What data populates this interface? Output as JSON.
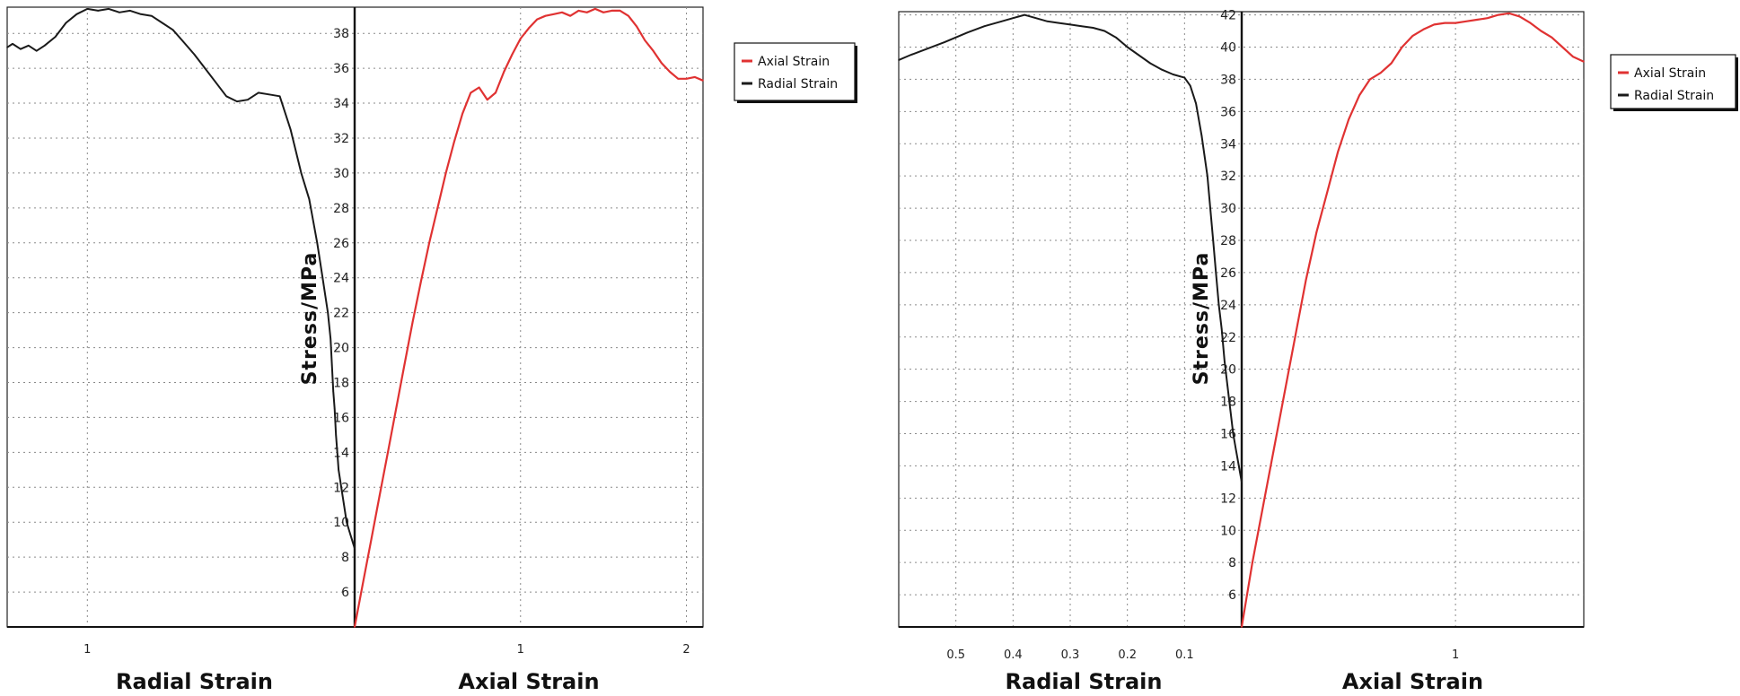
{
  "colors": {
    "axial": "#e03232",
    "radial": "#1a1a1a",
    "grid": "#8a8a8a"
  },
  "chart_data": [
    {
      "type": "line",
      "ylabel": "Stress/MPa",
      "ylim": [
        4,
        39.5
      ],
      "yticks": [
        6,
        8,
        10,
        12,
        14,
        16,
        18,
        20,
        22,
        24,
        26,
        28,
        30,
        32,
        34,
        36,
        38
      ],
      "grid": true,
      "legend_position": "right",
      "radial": {
        "xlabel": "Radial Strain",
        "xlim": [
          1.3,
          0
        ],
        "reversed": true,
        "xticks": [
          1
        ],
        "series": {
          "name": "Radial Strain",
          "x": [
            1.3,
            1.28,
            1.25,
            1.22,
            1.19,
            1.16,
            1.12,
            1.08,
            1.04,
            1.0,
            0.96,
            0.92,
            0.88,
            0.84,
            0.8,
            0.76,
            0.72,
            0.68,
            0.64,
            0.6,
            0.56,
            0.52,
            0.48,
            0.44,
            0.4,
            0.36,
            0.32,
            0.28,
            0.24,
            0.2,
            0.17,
            0.14,
            0.12,
            0.1,
            0.09,
            0.085,
            0.08,
            0.075,
            0.07,
            0.065,
            0.06,
            0.055,
            0.05,
            0.045,
            0.04,
            0.035,
            0.03,
            0.02,
            0.01,
            0.0
          ],
          "y": [
            37.2,
            37.4,
            37.1,
            37.3,
            37.0,
            37.3,
            37.8,
            38.6,
            39.1,
            39.4,
            39.3,
            39.4,
            39.2,
            39.3,
            39.1,
            39.0,
            38.6,
            38.2,
            37.5,
            36.8,
            36.0,
            35.2,
            34.4,
            34.1,
            34.2,
            34.6,
            34.5,
            34.4,
            32.5,
            30.0,
            28.5,
            26.0,
            24.0,
            22.0,
            20.5,
            19.0,
            17.5,
            16.5,
            15.0,
            14.0,
            13.0,
            12.5,
            12.0,
            11.5,
            11.0,
            10.5,
            10.0,
            9.5,
            9.0,
            8.5
          ]
        }
      },
      "axial": {
        "xlabel": "Axial Strain",
        "xlim": [
          0,
          2.1
        ],
        "xticks": [
          1,
          2
        ],
        "series": {
          "name": "Axial Strain",
          "x": [
            0.0,
            0.05,
            0.1,
            0.15,
            0.2,
            0.25,
            0.3,
            0.35,
            0.4,
            0.45,
            0.5,
            0.55,
            0.6,
            0.65,
            0.7,
            0.75,
            0.8,
            0.85,
            0.9,
            0.95,
            1.0,
            1.05,
            1.1,
            1.15,
            1.2,
            1.25,
            1.3,
            1.35,
            1.4,
            1.45,
            1.5,
            1.55,
            1.6,
            1.65,
            1.7,
            1.75,
            1.8,
            1.85,
            1.9,
            1.95,
            2.0,
            2.05,
            2.1
          ],
          "y": [
            4.0,
            6.5,
            9.0,
            11.5,
            14.0,
            16.5,
            19.0,
            21.5,
            23.8,
            26.0,
            28.0,
            30.0,
            31.8,
            33.4,
            34.6,
            34.9,
            34.2,
            34.6,
            35.8,
            36.8,
            37.7,
            38.3,
            38.8,
            39.0,
            39.1,
            39.2,
            39.0,
            39.3,
            39.2,
            39.4,
            39.2,
            39.3,
            39.3,
            39.0,
            38.4,
            37.6,
            37.0,
            36.3,
            35.8,
            35.4,
            35.4,
            35.5,
            35.3
          ]
        }
      }
    },
    {
      "type": "line",
      "ylabel": "Stress/MPa",
      "ylim": [
        4,
        42.2
      ],
      "yticks": [
        6,
        8,
        10,
        12,
        14,
        16,
        18,
        20,
        22,
        24,
        26,
        28,
        30,
        32,
        34,
        36,
        38,
        40,
        42
      ],
      "grid": true,
      "legend_position": "right",
      "radial": {
        "xlabel": "Radial Strain",
        "xlim": [
          0.6,
          0
        ],
        "reversed": true,
        "xticks": [
          0.5,
          0.4,
          0.3,
          0.2,
          0.1
        ],
        "xtick_labels": [
          "0.5",
          "0.4",
          "0.3",
          "0.2",
          "0.1"
        ],
        "series": {
          "name": "Radial Strain",
          "x": [
            0.6,
            0.58,
            0.55,
            0.52,
            0.5,
            0.48,
            0.45,
            0.42,
            0.4,
            0.38,
            0.36,
            0.34,
            0.32,
            0.3,
            0.28,
            0.26,
            0.24,
            0.22,
            0.2,
            0.18,
            0.16,
            0.14,
            0.12,
            0.1,
            0.09,
            0.08,
            0.07,
            0.06,
            0.055,
            0.05,
            0.045,
            0.04,
            0.035,
            0.03,
            0.025,
            0.02,
            0.015,
            0.01,
            0.005,
            0.0
          ],
          "y": [
            39.2,
            39.5,
            39.9,
            40.3,
            40.6,
            40.9,
            41.3,
            41.6,
            41.8,
            42.0,
            41.8,
            41.6,
            41.5,
            41.4,
            41.3,
            41.2,
            41.0,
            40.6,
            40.0,
            39.5,
            39.0,
            38.6,
            38.3,
            38.1,
            37.6,
            36.5,
            34.5,
            32.0,
            30.0,
            28.0,
            26.0,
            24.0,
            22.5,
            20.5,
            19.0,
            17.5,
            16.0,
            15.0,
            14.0,
            13.0
          ]
        }
      },
      "axial": {
        "xlabel": "Axial Strain",
        "xlim": [
          0,
          1.6
        ],
        "xticks": [
          1
        ],
        "series": {
          "name": "Axial Strain",
          "x": [
            0.0,
            0.05,
            0.1,
            0.15,
            0.2,
            0.25,
            0.3,
            0.35,
            0.4,
            0.45,
            0.5,
            0.55,
            0.6,
            0.65,
            0.7,
            0.75,
            0.8,
            0.85,
            0.9,
            0.95,
            1.0,
            1.05,
            1.1,
            1.15,
            1.2,
            1.25,
            1.3,
            1.35,
            1.4,
            1.45,
            1.5,
            1.55,
            1.6
          ],
          "y": [
            4.0,
            8.0,
            11.5,
            15.0,
            18.5,
            22.0,
            25.5,
            28.5,
            31.0,
            33.5,
            35.5,
            37.0,
            38.0,
            38.4,
            39.0,
            40.0,
            40.7,
            41.1,
            41.4,
            41.5,
            41.5,
            41.6,
            41.7,
            41.8,
            42.0,
            42.1,
            41.9,
            41.5,
            41.0,
            40.6,
            40.0,
            39.4,
            39.1
          ]
        }
      }
    }
  ]
}
